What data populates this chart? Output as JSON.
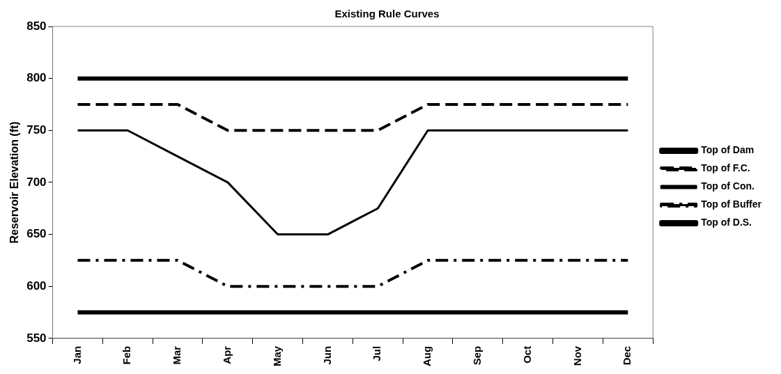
{
  "chart_data": {
    "type": "line",
    "title": "Existing Rule Curves",
    "ylabel": "Reservoir Elevation (ft)",
    "categories": [
      "Jan",
      "Feb",
      "Mar",
      "Apr",
      "May",
      "Jun",
      "Jul",
      "Aug",
      "Sep",
      "Oct",
      "Nov",
      "Dec"
    ],
    "ylim": [
      550,
      850
    ],
    "yticks": [
      550,
      600,
      650,
      700,
      750,
      800,
      850
    ],
    "grid": false,
    "legend": "right",
    "marker": "none",
    "series": [
      {
        "name": "Top of Dam",
        "color": "#000000",
        "line_style": "solid",
        "values": [
          800,
          800,
          800,
          800,
          800,
          800,
          800,
          800,
          800,
          800,
          800,
          800
        ]
      },
      {
        "name": "Top of F.C.",
        "color": "#000000",
        "line_style": "dashed",
        "values": [
          775,
          775,
          775,
          750,
          750,
          750,
          750,
          775,
          775,
          775,
          775,
          775
        ]
      },
      {
        "name": "Top of Con.",
        "color": "#000000",
        "line_style": "solid",
        "values": [
          750,
          750,
          725,
          700,
          650,
          650,
          675,
          750,
          750,
          750,
          750,
          750
        ]
      },
      {
        "name": "Top of Buffer",
        "color": "#000000",
        "line_style": "dashdot",
        "values": [
          625,
          625,
          625,
          600,
          600,
          600,
          600,
          625,
          625,
          625,
          625,
          625
        ]
      },
      {
        "name": "Top of D.S.",
        "color": "#000000",
        "line_style": "solid",
        "values": [
          575,
          575,
          575,
          575,
          575,
          575,
          575,
          575,
          575,
          575,
          575,
          575
        ]
      }
    ]
  }
}
